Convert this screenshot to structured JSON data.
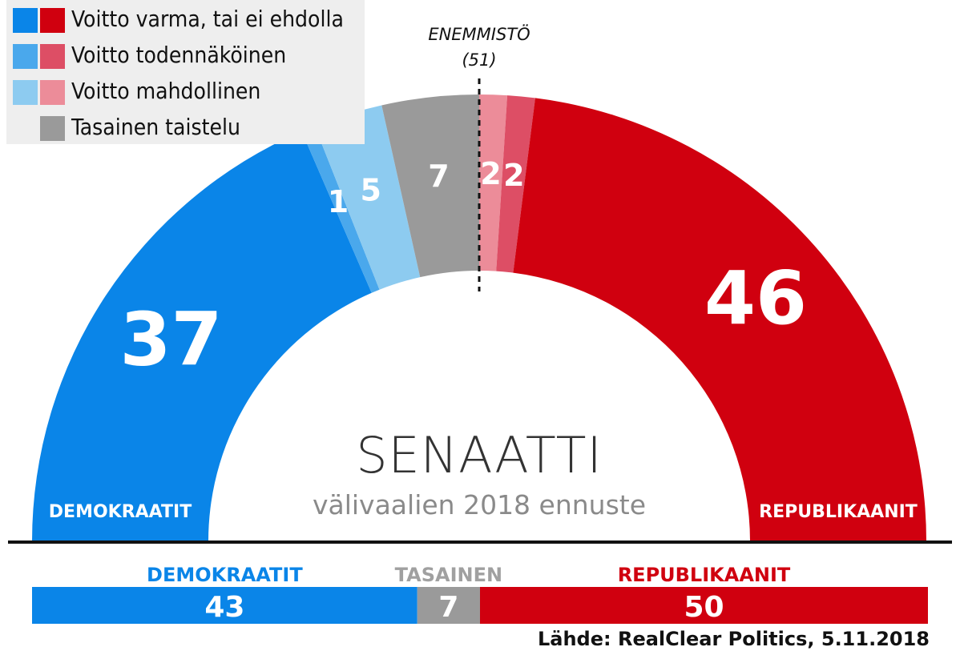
{
  "legend": {
    "items": [
      {
        "label": "Voitto varma, tai ei ehdolla",
        "colors": [
          "#0a85e8",
          "#d0000f"
        ]
      },
      {
        "label": "Voitto todennäköinen",
        "colors": [
          "#4aa8ec",
          "#dd4e65"
        ]
      },
      {
        "label": "Voitto mahdollinen",
        "colors": [
          "#8dcbf0",
          "#ec8c99"
        ]
      },
      {
        "label": "Tasainen taistelu",
        "colors": [
          "#9a9a9a"
        ]
      }
    ]
  },
  "majority": {
    "label": "ENEMMISTÖ",
    "value": "(51)"
  },
  "center": {
    "title": "SENAATTI",
    "subtitle": "välivaalien 2018 ennuste"
  },
  "chart_data": [
    {
      "type": "pie",
      "variant": "semicircle",
      "total": 100,
      "slices": [
        {
          "group": "DEMOKRAATIT",
          "category": "Voitto varma, tai ei ehdolla",
          "value": 37,
          "label": "37",
          "color": "#0a85e8"
        },
        {
          "group": "DEMOKRAATIT",
          "category": "Voitto todennäköinen",
          "value": 1,
          "label": "1",
          "color": "#4aa8ec"
        },
        {
          "group": "DEMOKRAATIT",
          "category": "Voitto mahdollinen",
          "value": 5,
          "label": "5",
          "color": "#8dcbf0"
        },
        {
          "group": "TASAINEN",
          "category": "Tasainen taistelu",
          "value": 7,
          "label": "7",
          "color": "#9a9a9a"
        },
        {
          "group": "REPUBLIKAANIT",
          "category": "Voitto mahdollinen",
          "value": 2,
          "label": "2",
          "color": "#ec8c99"
        },
        {
          "group": "REPUBLIKAANIT",
          "category": "Voitto todennäköinen",
          "value": 2,
          "label": "2",
          "color": "#dd4e65"
        },
        {
          "group": "REPUBLIKAANIT",
          "category": "Voitto varma, tai ei ehdolla",
          "value": 46,
          "label": "46",
          "color": "#d0000f"
        }
      ],
      "side_labels": {
        "left": "DEMOKRAATIT",
        "right": "REPUBLIKAANIT"
      }
    },
    {
      "type": "bar",
      "orientation": "horizontal-stacked",
      "segments": [
        {
          "name": "DEMOKRAATIT",
          "value": 43,
          "color": "#0a85e8"
        },
        {
          "name": "TASAINEN",
          "value": 7,
          "color": "#9a9a9a"
        },
        {
          "name": "REPUBLIKAANIT",
          "value": 50,
          "color": "#d0000f"
        }
      ]
    }
  ],
  "source": "Lähde: RealClear Politics, 5.11.2018"
}
